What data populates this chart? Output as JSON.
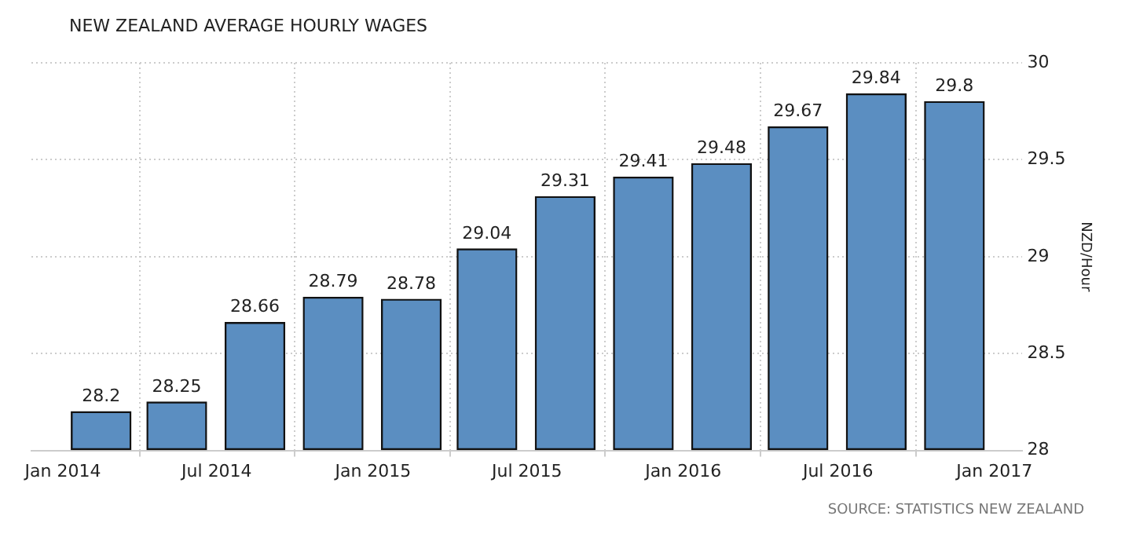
{
  "chart_data": {
    "type": "bar",
    "title": "NEW ZEALAND AVERAGE HOURLY WAGES",
    "ylabel": "NZD/Hour",
    "x": [
      "2014-02-15",
      "2014-05-15",
      "2014-08-15",
      "2014-11-15",
      "2015-02-15",
      "2015-05-15",
      "2015-08-15",
      "2015-11-15",
      "2016-02-15",
      "2016-05-15",
      "2016-08-15",
      "2016-11-15"
    ],
    "values": [
      28.2,
      28.25,
      28.66,
      28.79,
      28.78,
      29.04,
      29.31,
      29.41,
      29.48,
      29.67,
      29.84,
      29.8
    ],
    "color": "#5b8ec1",
    "data_labels": true,
    "xlim": [
      "2013-11-25",
      "2017-02-03"
    ],
    "xticks": [
      {
        "value": "2014-01-01",
        "label": "Jan 2014"
      },
      {
        "value": "2014-07-01",
        "label": "Jul 2014"
      },
      {
        "value": "2015-01-01",
        "label": "Jan 2015"
      },
      {
        "value": "2015-07-01",
        "label": "Jul 2015"
      },
      {
        "value": "2016-01-01",
        "label": "Jan 2016"
      },
      {
        "value": "2016-07-01",
        "label": "Jul 2016"
      },
      {
        "value": "2017-01-01",
        "label": "Jan 2017"
      }
    ],
    "ylim": [
      28,
      30
    ],
    "yticks": [
      28,
      28.5,
      29,
      29.5,
      30
    ],
    "grid": true,
    "legend": false,
    "annotations": [
      "SOURCE: STATISTICS NEW ZEALAND"
    ]
  }
}
